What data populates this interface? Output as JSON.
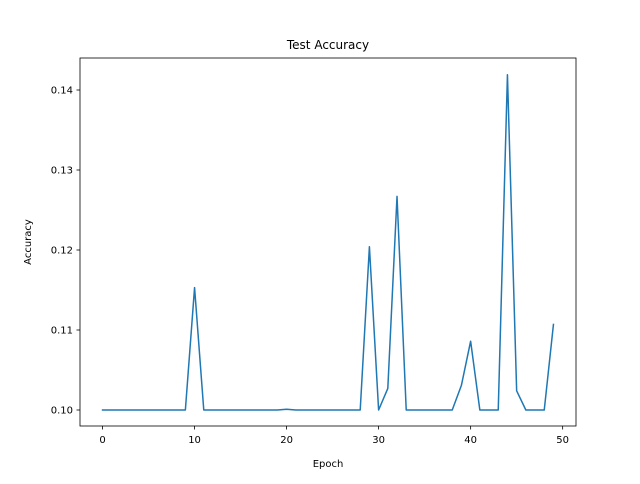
{
  "chart_data": {
    "type": "line",
    "title": "Test Accuracy",
    "xlabel": "Epoch",
    "ylabel": "Accuracy",
    "xlim": [
      -2.45,
      51.45
    ],
    "ylim": [
      0.098,
      0.144
    ],
    "xticks": [
      0,
      10,
      20,
      30,
      40,
      50
    ],
    "xtick_labels": [
      "0",
      "10",
      "20",
      "30",
      "40",
      "50"
    ],
    "yticks": [
      0.1,
      0.11,
      0.12,
      0.13,
      0.14
    ],
    "ytick_labels": [
      "0.10",
      "0.11",
      "0.12",
      "0.13",
      "0.14"
    ],
    "grid": false,
    "series": [
      {
        "color": "#1f77b4",
        "x": [
          0,
          1,
          2,
          3,
          4,
          5,
          6,
          7,
          8,
          9,
          10,
          11,
          12,
          13,
          14,
          15,
          16,
          17,
          18,
          19,
          20,
          21,
          22,
          23,
          24,
          25,
          26,
          27,
          28,
          29,
          30,
          31,
          32,
          33,
          34,
          35,
          36,
          37,
          38,
          39,
          40,
          41,
          42,
          43,
          44,
          45,
          46,
          47,
          48,
          49
        ],
        "values": [
          0.1,
          0.1,
          0.1,
          0.1,
          0.1,
          0.1,
          0.1,
          0.1,
          0.1,
          0.1,
          0.1153,
          0.1,
          0.1,
          0.1,
          0.1,
          0.1,
          0.1,
          0.1,
          0.1,
          0.1,
          0.1001,
          0.1,
          0.1,
          0.1,
          0.1,
          0.1,
          0.1,
          0.1,
          0.1,
          0.1204,
          0.1,
          0.1027,
          0.1267,
          0.1,
          0.1,
          0.1,
          0.1,
          0.1,
          0.1,
          0.1031,
          0.1086,
          0.1,
          0.1,
          0.1,
          0.1419,
          0.1024,
          0.1,
          0.1,
          0.1,
          0.1107
        ]
      }
    ]
  }
}
